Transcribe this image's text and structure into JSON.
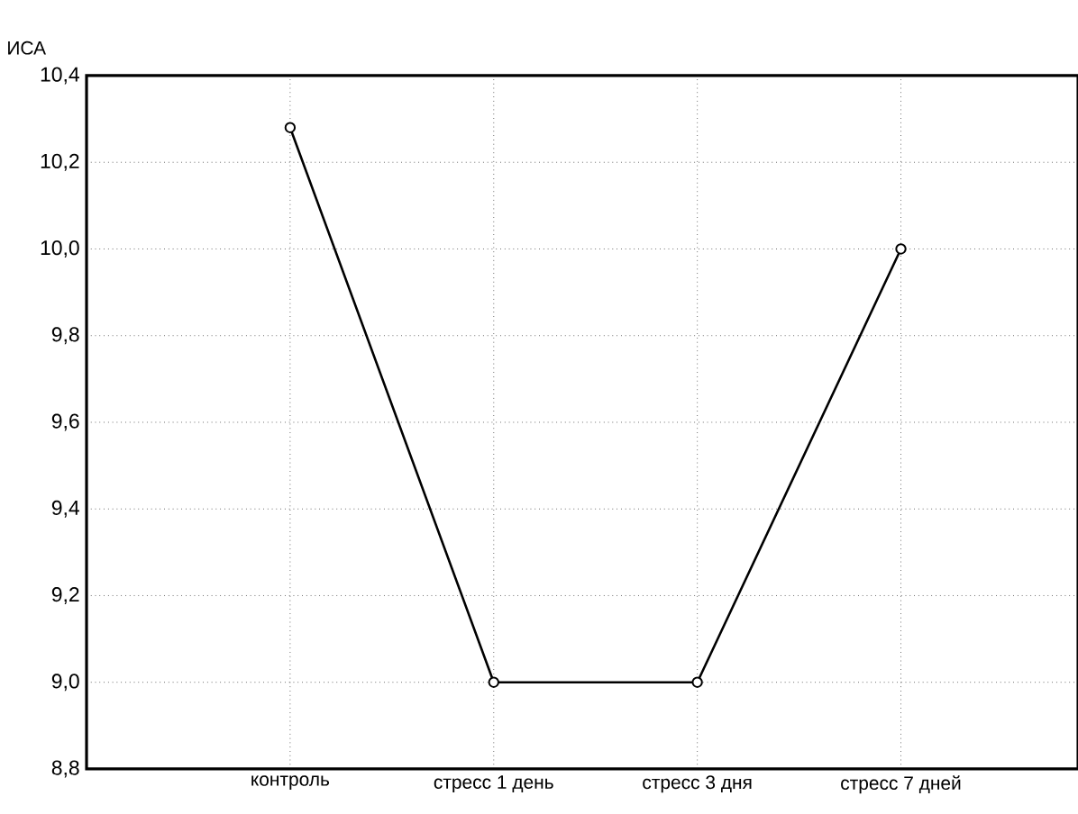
{
  "chart_data": {
    "type": "line",
    "ylabel": "ИСА",
    "categories": [
      "контроль",
      "стресс 1 день",
      "стресс 3 дня",
      "стресс 7 дней"
    ],
    "values": [
      10.28,
      9.0,
      9.0,
      10.0
    ],
    "color": "#000000",
    "ylim": [
      8.8,
      10.4
    ],
    "yticks": [
      {
        "value": 8.8,
        "label": "8,8"
      },
      {
        "value": 9.0,
        "label": "9,0"
      },
      {
        "value": 9.2,
        "label": "9,2"
      },
      {
        "value": 9.4,
        "label": "9,4"
      },
      {
        "value": 9.6,
        "label": "9,6"
      },
      {
        "value": 9.8,
        "label": "9,8"
      },
      {
        "value": 10.0,
        "label": "10,0"
      },
      {
        "value": 10.2,
        "label": "10,2"
      },
      {
        "value": 10.4,
        "label": "10,4"
      }
    ],
    "grid": true,
    "marker": "circle",
    "line_style": "solid"
  }
}
